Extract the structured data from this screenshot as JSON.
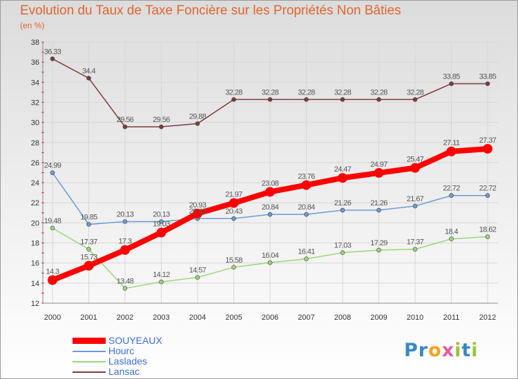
{
  "chart_data": {
    "type": "line",
    "title": "Evolution du Taux de Taxe Foncière sur les Propriétés Non Bâties",
    "unit_label": "(en %)",
    "categories": [
      "2000",
      "2001",
      "2002",
      "2003",
      "2004",
      "2005",
      "2006",
      "2007",
      "2008",
      "2009",
      "2010",
      "2011",
      "2012"
    ],
    "ylim": [
      12,
      38
    ],
    "yticks": [
      12,
      14,
      16,
      18,
      20,
      22,
      24,
      26,
      28,
      30,
      32,
      34,
      36,
      38
    ],
    "grid": true,
    "legend_placement": "bottom-left",
    "series": [
      {
        "name": "SOUYEAUX",
        "color": "#ff0000",
        "labels": [
          "14.3",
          "15.73",
          "17.3",
          "19.03",
          "20.93",
          "21.97",
          "23.08",
          "23.76",
          "24.47",
          "24.97",
          "25.47",
          "27.11",
          "27.37"
        ],
        "values": [
          14.3,
          15.73,
          17.3,
          19.03,
          20.93,
          21.97,
          23.08,
          23.76,
          24.47,
          24.97,
          25.47,
          27.11,
          27.37
        ]
      },
      {
        "name": "Hourc",
        "color": "#6b9bd2",
        "labels": [
          "24.99",
          "19.85",
          "20.13",
          "20.13",
          "20.43",
          "20.43",
          "20.84",
          "20.84",
          "21.26",
          "21.26",
          "21.67",
          "22.72",
          "22.72"
        ],
        "values": [
          24.99,
          19.85,
          20.13,
          20.13,
          20.43,
          20.43,
          20.84,
          20.84,
          21.26,
          21.26,
          21.67,
          22.72,
          22.72
        ]
      },
      {
        "name": "Laslades",
        "color": "#99d67a",
        "labels": [
          "19.48",
          "17.37",
          "13.48",
          "14.12",
          "14.57",
          "15.58",
          "16.04",
          "16.41",
          "17.03",
          "17.29",
          "17.37",
          "18.4",
          "18.62"
        ],
        "values": [
          19.48,
          17.37,
          13.48,
          14.12,
          14.57,
          15.58,
          16.04,
          16.41,
          17.03,
          17.29,
          17.37,
          18.4,
          18.62
        ]
      },
      {
        "name": "Lansac",
        "color": "#7a3a3a",
        "labels": [
          "36.33",
          "34.4",
          "29.56",
          "29.56",
          "29.88",
          "32.28",
          "32.28",
          "32.28",
          "32.28",
          "32.28",
          "32.28",
          "33.85",
          "33.85"
        ],
        "values": [
          36.33,
          34.4,
          29.56,
          29.56,
          29.88,
          32.28,
          32.28,
          32.28,
          32.28,
          32.28,
          32.28,
          33.85,
          33.85
        ]
      }
    ]
  },
  "logo": {
    "letters": [
      "P",
      "r",
      "o",
      "x",
      "i",
      "t",
      "i"
    ],
    "colors": [
      "#3a86c8",
      "#3a86c8",
      "#f7a21b",
      "#e85a9b",
      "#9bc43a",
      "#3a86c8",
      "#9bc43a"
    ]
  }
}
